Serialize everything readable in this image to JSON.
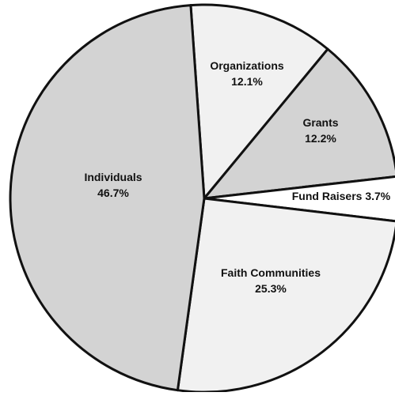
{
  "chart_data": {
    "type": "pie",
    "start_angle_deg": 266,
    "direction": "clockwise",
    "slices": [
      {
        "label": "Organizations",
        "value": 12.1,
        "value_label": "12.1%",
        "color": "#f1f1f1"
      },
      {
        "label": "Grants",
        "value": 12.2,
        "value_label": "12.2%",
        "color": "#d3d3d3"
      },
      {
        "label": "Fund Raisers",
        "value": 3.7,
        "value_label": "3.7%",
        "color": "#ffffff"
      },
      {
        "label": "Faith Communities",
        "value": 25.3,
        "value_label": "25.3%",
        "color": "#f1f1f1"
      },
      {
        "label": "Individuals",
        "value": 46.7,
        "value_label": "46.7%",
        "color": "#d3d3d3"
      }
    ],
    "edge_color": "#111111",
    "legend": "none",
    "title": ""
  }
}
